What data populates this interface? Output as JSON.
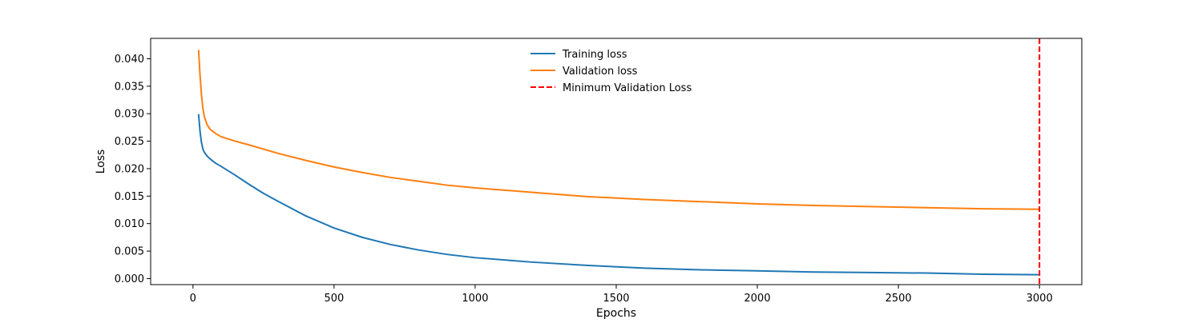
{
  "chart_data": {
    "type": "line",
    "title": "",
    "xlabel": "Epochs",
    "ylabel": "Loss",
    "xlim": [
      -150,
      3150
    ],
    "ylim": [
      -0.0011,
      0.0437
    ],
    "xticks": [
      0,
      500,
      1000,
      1500,
      2000,
      2500,
      3000
    ],
    "xtick_labels": [
      "0",
      "500",
      "1000",
      "1500",
      "2000",
      "2500",
      "3000"
    ],
    "yticks": [
      0.0,
      0.005,
      0.01,
      0.015,
      0.02,
      0.025,
      0.03,
      0.035,
      0.04
    ],
    "ytick_labels": [
      "0.000",
      "0.005",
      "0.010",
      "0.015",
      "0.020",
      "0.025",
      "0.030",
      "0.035",
      "0.040"
    ],
    "grid": false,
    "legend_position": "top-center",
    "series": [
      {
        "name": "Training loss",
        "color": "#1f77b4",
        "style": "solid",
        "x": [
          20,
          25,
          30,
          35,
          40,
          50,
          60,
          80,
          100,
          150,
          200,
          250,
          300,
          400,
          500,
          600,
          700,
          800,
          900,
          1000,
          1200,
          1400,
          1600,
          1800,
          2000,
          2200,
          2400,
          2600,
          2800,
          3000
        ],
        "y": [
          0.0298,
          0.0268,
          0.0248,
          0.0236,
          0.023,
          0.0223,
          0.0218,
          0.021,
          0.0204,
          0.0188,
          0.0171,
          0.0155,
          0.0141,
          0.0114,
          0.0092,
          0.0075,
          0.0062,
          0.0052,
          0.0044,
          0.0038,
          0.003,
          0.0024,
          0.0019,
          0.0016,
          0.0014,
          0.0012,
          0.0011,
          0.001,
          0.0008,
          0.0007
        ]
      },
      {
        "name": "Validation loss",
        "color": "#ff7f0e",
        "style": "solid",
        "x": [
          20,
          25,
          30,
          35,
          40,
          50,
          60,
          80,
          100,
          150,
          200,
          300,
          400,
          500,
          600,
          700,
          800,
          900,
          1000,
          1200,
          1400,
          1600,
          1800,
          2000,
          2200,
          2400,
          2600,
          2800,
          3000
        ],
        "y": [
          0.0415,
          0.037,
          0.0335,
          0.031,
          0.0295,
          0.028,
          0.0272,
          0.0264,
          0.0258,
          0.025,
          0.0243,
          0.0228,
          0.0215,
          0.0203,
          0.0193,
          0.0184,
          0.0177,
          0.017,
          0.0165,
          0.0157,
          0.0149,
          0.0144,
          0.014,
          0.0136,
          0.0133,
          0.0131,
          0.0129,
          0.0127,
          0.0126
        ]
      },
      {
        "name": "Minimum Validation Loss",
        "color": "#ff0000",
        "style": "dashed",
        "vline_x": 3000
      }
    ]
  }
}
